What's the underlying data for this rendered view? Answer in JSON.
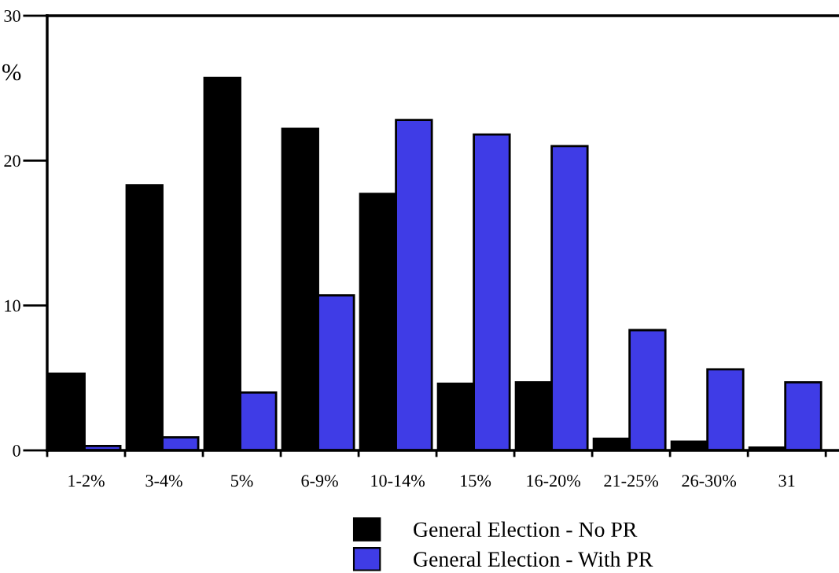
{
  "chart_data": {
    "type": "bar",
    "ylabel": "%",
    "categories": [
      "1-2%",
      "3-4%",
      "5%",
      "6-9%",
      "10-14%",
      "15%",
      "16-20%",
      "21-25%",
      "26-30%",
      "31"
    ],
    "series": [
      {
        "name": "General Election - No PR",
        "color": "#000000",
        "values": [
          5.3,
          18.3,
          25.7,
          22.2,
          17.7,
          4.6,
          4.7,
          0.8,
          0.6,
          0.2
        ]
      },
      {
        "name": "General Election - With PR",
        "color": "#3f3ce6",
        "values": [
          0.3,
          0.9,
          4.0,
          10.7,
          22.8,
          21.8,
          21.0,
          8.3,
          5.6,
          4.7
        ]
      }
    ],
    "ylim": [
      0,
      30
    ],
    "yticks": [
      0,
      10,
      20,
      30
    ],
    "grid": false,
    "legend": "bottom"
  }
}
